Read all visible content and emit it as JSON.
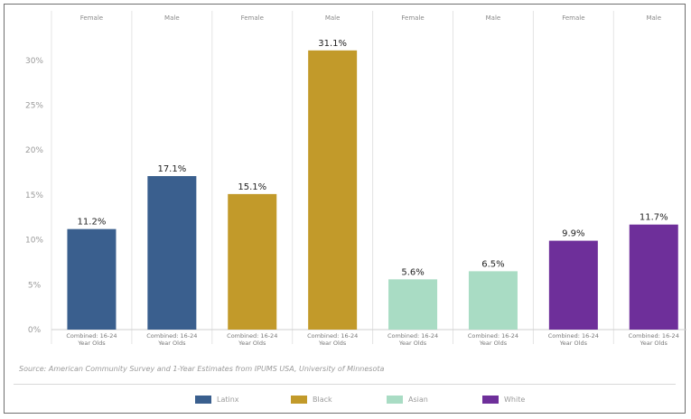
{
  "chart_data": {
    "type": "bar",
    "panels": [
      {
        "group": "Latinx",
        "sex": "Female",
        "category": "Combined: 16-24 Year Olds",
        "value": 11.2,
        "label": "11.2%"
      },
      {
        "group": "Latinx",
        "sex": "Male",
        "category": "Combined: 16-24 Year Olds",
        "value": 17.1,
        "label": "17.1%"
      },
      {
        "group": "Black",
        "sex": "Female",
        "category": "Combined: 16-24 Year Olds",
        "value": 15.1,
        "label": "15.1%"
      },
      {
        "group": "Black",
        "sex": "Male",
        "category": "Combined: 16-24 Year Olds",
        "value": 31.1,
        "label": "31.1%"
      },
      {
        "group": "Asian",
        "sex": "Female",
        "category": "Combined: 16-24 Year Olds",
        "value": 5.6,
        "label": "5.6%"
      },
      {
        "group": "Asian",
        "sex": "Male",
        "category": "Combined: 16-24 Year Olds",
        "value": 6.5,
        "label": "6.5%"
      },
      {
        "group": "White",
        "sex": "Female",
        "category": "Combined: 16-24 Year Olds",
        "value": 9.9,
        "label": "9.9%"
      },
      {
        "group": "White",
        "sex": "Male",
        "category": "Combined: 16-24 Year Olds",
        "value": 11.7,
        "label": "11.7%"
      }
    ],
    "y_ticks": [
      {
        "value": 0,
        "label": "0%"
      },
      {
        "value": 5,
        "label": "5%"
      },
      {
        "value": 10,
        "label": "10%"
      },
      {
        "value": 15,
        "label": "15%"
      },
      {
        "value": 20,
        "label": "20%"
      },
      {
        "value": 25,
        "label": "25%"
      },
      {
        "value": 30,
        "label": "30%"
      }
    ],
    "ylim": [
      0,
      34
    ],
    "legend": [
      {
        "name": "Latinx",
        "color": "#3a5f8e"
      },
      {
        "name": "Black",
        "color": "#c29a2a"
      },
      {
        "name": "Asian",
        "color": "#a9dcc4"
      },
      {
        "name": "White",
        "color": "#6e2f9a"
      }
    ],
    "legend_position": "bottom",
    "grid": false,
    "source": "Source: American Community Survey and 1-Year Estimates from IPUMS USA, University of Minnesota"
  }
}
